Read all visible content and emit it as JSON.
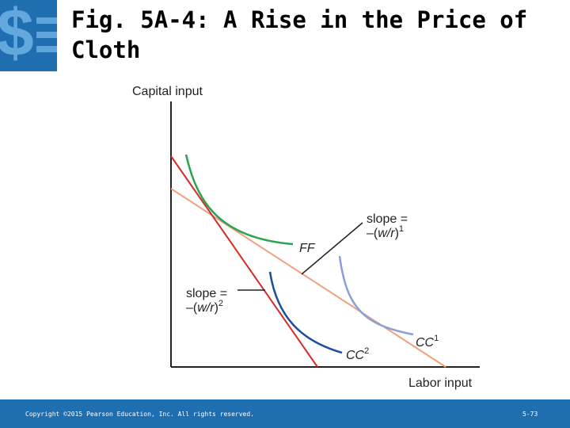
{
  "header": {
    "title": "Fig. 5A-4:  A Rise in the Price of Cloth"
  },
  "logo": {
    "icon": "dollar-sign-logo-icon",
    "color": "#1f6fb0"
  },
  "diagram": {
    "y_axis_label": "Capital input",
    "x_axis_label": "Labor input",
    "curves": {
      "ff": {
        "label": "FF",
        "color": "#2aa44a"
      },
      "cc1": {
        "label": "CC",
        "superscript": "1",
        "color": "#8a9fd8"
      },
      "cc2": {
        "label": "CC",
        "superscript": "2",
        "color": "#1a4f9c"
      }
    },
    "lines": {
      "slope1": {
        "color": "#f0a080"
      },
      "slope2": {
        "color": "#d42a2a"
      }
    },
    "annotations": {
      "slope1": {
        "line1": "slope =",
        "line2_prefix": "–(",
        "line2_ratio": "w/r",
        "line2_suffix": ")",
        "superscript": "1"
      },
      "slope2": {
        "line1": "slope =",
        "line2_prefix": "–(",
        "line2_ratio": "w/r",
        "line2_suffix": ")",
        "superscript": "2"
      }
    }
  },
  "footer": {
    "copyright": "Copyright ©2015 Pearson Education, Inc. All rights reserved.",
    "page": "5-73",
    "color": "#1f6fb0"
  }
}
